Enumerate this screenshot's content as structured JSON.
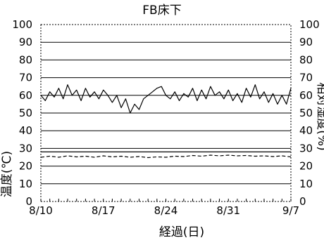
{
  "chart_data": {
    "type": "line",
    "title": "FB床下",
    "xlabel": "経過(日)",
    "ylabel_left": "温度(℃)",
    "ylabel_right": "相対湿度(%)",
    "ylim": [
      0,
      100
    ],
    "y_ticks": [
      0,
      10,
      20,
      30,
      40,
      50,
      60,
      70,
      80,
      90,
      100
    ],
    "y_ticks_right": [
      0,
      10,
      20,
      30,
      40,
      50,
      60,
      70,
      80,
      90,
      100
    ],
    "x_ticks": [
      {
        "day": 0,
        "label": "8/10"
      },
      {
        "day": 7,
        "label": "8/17"
      },
      {
        "day": 14,
        "label": "8/24"
      },
      {
        "day": 21,
        "label": "8/31"
      },
      {
        "day": 28,
        "label": "9/7"
      }
    ],
    "xlim": [
      0,
      28
    ],
    "grid": true,
    "series": [
      {
        "axis": "right",
        "style": "solid",
        "x": [
          0,
          0.5,
          1,
          1.5,
          2,
          2.5,
          3,
          3.5,
          4,
          4.5,
          5,
          5.5,
          6,
          6.5,
          7,
          7.5,
          8,
          8.5,
          9,
          9.5,
          10,
          10.5,
          11,
          11.5,
          12,
          12.5,
          13,
          13.5,
          14,
          14.5,
          15,
          15.5,
          16,
          16.5,
          17,
          17.5,
          18,
          18.5,
          19,
          19.5,
          20,
          20.5,
          21,
          21.5,
          22,
          22.5,
          23,
          23.5,
          24,
          24.5,
          25,
          25.5,
          26,
          26.5,
          27,
          27.5,
          28
        ],
        "values": [
          60,
          57,
          62,
          59,
          64,
          58,
          66,
          60,
          63,
          57,
          64,
          59,
          62,
          58,
          63,
          60,
          56,
          60,
          53,
          58,
          50,
          55,
          52,
          58,
          60,
          62,
          64,
          65,
          60,
          58,
          62,
          57,
          61,
          59,
          64,
          57,
          63,
          58,
          65,
          60,
          62,
          58,
          63,
          57,
          61,
          56,
          64,
          59,
          66,
          58,
          62,
          56,
          61,
          55,
          60,
          55,
          64
        ]
      },
      {
        "axis": "left",
        "style": "dashed",
        "x": [
          0,
          1,
          2,
          3,
          4,
          5,
          6,
          7,
          8,
          9,
          10,
          11,
          12,
          13,
          14,
          15,
          16,
          17,
          18,
          19,
          20,
          21,
          22,
          23,
          24,
          25,
          26,
          27,
          28
        ],
        "values": [
          25,
          25.6,
          25,
          25.8,
          25.2,
          25.6,
          25,
          25.8,
          25.2,
          25.6,
          25,
          25.4,
          24.8,
          25.2,
          25,
          25.6,
          25.4,
          26,
          25.6,
          26.2,
          25.8,
          26.2,
          25.8,
          26,
          25.6,
          25.8,
          25.4,
          25.8,
          25.2
        ]
      },
      {
        "axis": "left",
        "style": "solid",
        "x": [
          0,
          1,
          2,
          3,
          4,
          5,
          6,
          7,
          8,
          9,
          10,
          11,
          12,
          13,
          14,
          15,
          16,
          17,
          18,
          19,
          20,
          21,
          22,
          23,
          24,
          25,
          26,
          27,
          28
        ],
        "values": [
          28,
          28,
          28,
          28,
          28,
          28,
          28,
          28,
          28,
          28,
          28,
          28,
          28,
          28,
          28,
          28,
          28,
          28,
          28,
          28,
          28,
          28,
          28,
          28,
          28,
          28,
          28,
          28,
          28
        ]
      }
    ]
  }
}
